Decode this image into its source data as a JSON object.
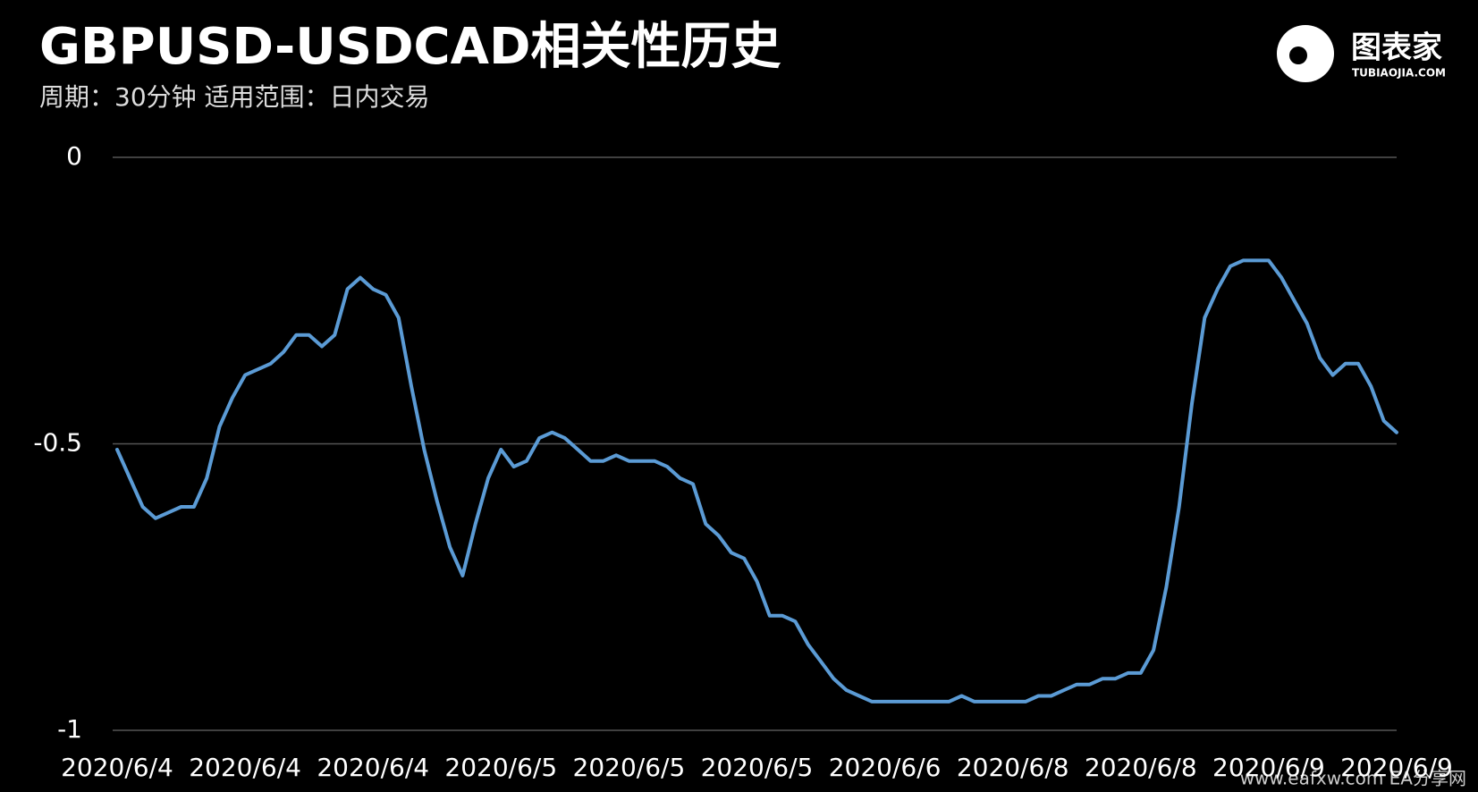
{
  "chart_data": {
    "type": "line",
    "title": "GBPUSD-USDCAD相关性历史",
    "subtitle": "周期：30分钟  适用范围：日内交易",
    "logo": "图表家",
    "logo_sub": "TUBIAOJIA.COM",
    "watermark": "www.eafxw.com  EA分享网",
    "categories": [
      "2020/6/4",
      null,
      null,
      null,
      null,
      null,
      null,
      null,
      null,
      null,
      "2020/6/4",
      null,
      null,
      null,
      null,
      null,
      null,
      null,
      null,
      null,
      "2020/6/4",
      null,
      null,
      null,
      null,
      null,
      null,
      null,
      null,
      null,
      "2020/6/5",
      null,
      null,
      null,
      null,
      null,
      null,
      null,
      null,
      null,
      "2020/6/5",
      null,
      null,
      null,
      null,
      null,
      null,
      null,
      null,
      null,
      "2020/6/5",
      null,
      null,
      null,
      null,
      null,
      null,
      null,
      null,
      null,
      "2020/6/6",
      null,
      null,
      null,
      null,
      null,
      null,
      null,
      null,
      null,
      "2020/6/8",
      null,
      null,
      null,
      null,
      null,
      null,
      null,
      null,
      null,
      "2020/6/8",
      null,
      null,
      null,
      null,
      null,
      null,
      null,
      null,
      null,
      "2020/6/9",
      null,
      null,
      null,
      null,
      null,
      null,
      null,
      null,
      null,
      "2020/6/9"
    ],
    "series": [
      {
        "name": "GBPUSD-USDCAD",
        "color": "#5b9bd5",
        "values": [
          -0.51,
          -0.56,
          -0.61,
          -0.63,
          -0.62,
          -0.61,
          -0.61,
          -0.56,
          -0.47,
          -0.42,
          -0.38,
          -0.37,
          -0.36,
          -0.34,
          -0.31,
          -0.31,
          -0.33,
          -0.31,
          -0.23,
          -0.21,
          -0.23,
          -0.24,
          -0.28,
          -0.4,
          -0.51,
          -0.6,
          -0.68,
          -0.73,
          -0.64,
          -0.56,
          -0.51,
          -0.54,
          -0.53,
          -0.49,
          -0.48,
          -0.49,
          -0.51,
          -0.53,
          -0.53,
          -0.52,
          -0.53,
          -0.53,
          -0.53,
          -0.54,
          -0.56,
          -0.57,
          -0.64,
          -0.66,
          -0.69,
          -0.7,
          -0.74,
          -0.8,
          -0.8,
          -0.81,
          -0.85,
          -0.88,
          -0.91,
          -0.93,
          -0.94,
          -0.95,
          -0.95,
          -0.95,
          -0.95,
          -0.95,
          -0.95,
          -0.95,
          -0.94,
          -0.95,
          -0.95,
          -0.95,
          -0.95,
          -0.95,
          -0.94,
          -0.94,
          -0.93,
          -0.92,
          -0.92,
          -0.91,
          -0.91,
          -0.9,
          -0.9,
          -0.86,
          -0.75,
          -0.61,
          -0.43,
          -0.28,
          -0.23,
          -0.19,
          -0.18,
          -0.18,
          -0.18,
          -0.21,
          -0.25,
          -0.29,
          -0.35,
          -0.38,
          -0.36,
          -0.36,
          -0.4,
          -0.46,
          -0.48
        ]
      }
    ],
    "ylim": [
      -1,
      0
    ],
    "yticks": [
      -1,
      -0.5,
      0
    ],
    "grid": true
  }
}
